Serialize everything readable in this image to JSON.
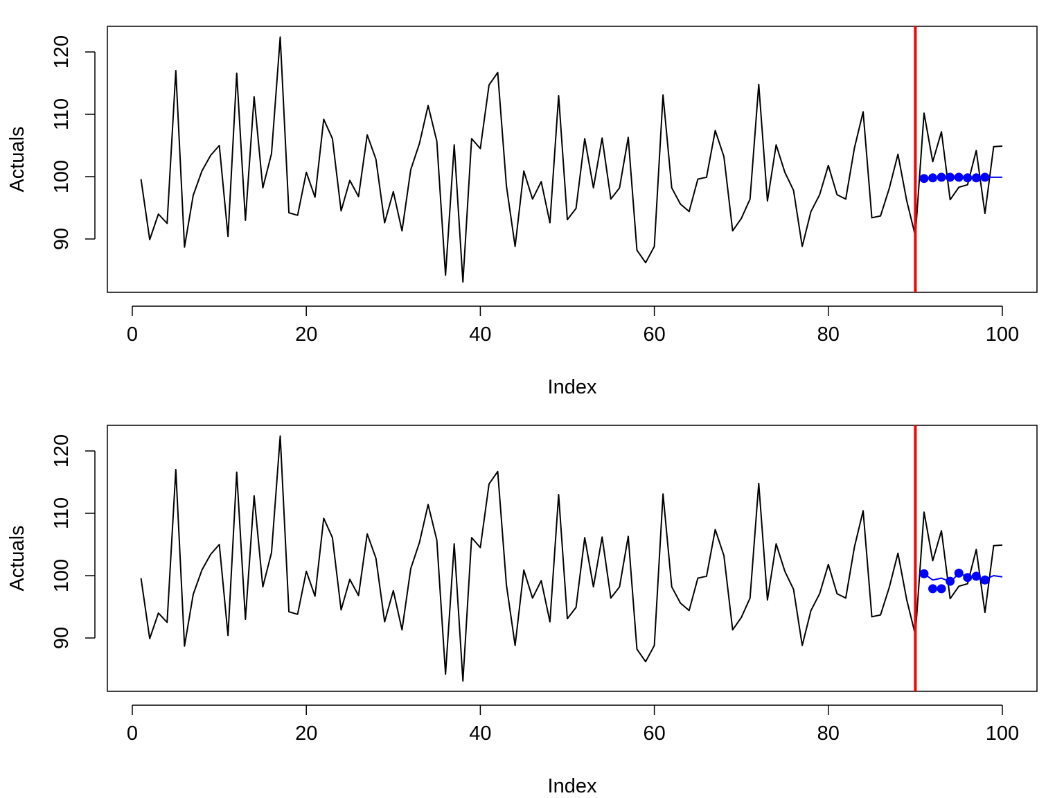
{
  "chart_data": [
    {
      "type": "line",
      "xlabel": "Index",
      "ylabel": "Actuals",
      "xlim": [
        1,
        100
      ],
      "ylim": [
        83,
        122.5
      ],
      "x_ticks": [
        "0",
        "20",
        "40",
        "60",
        "80",
        "100"
      ],
      "y_ticks": [
        "90",
        "100",
        "110",
        "120"
      ],
      "vline_x": 90,
      "vline_color": "#ff0000",
      "actuals": [
        99.6,
        89.9,
        94.0,
        92.5,
        117.0,
        88.7,
        97.0,
        100.9,
        103.4,
        105.0,
        90.4,
        116.6,
        93.0,
        112.8,
        98.2,
        103.7,
        122.4,
        94.2,
        93.8,
        100.7,
        96.7,
        109.2,
        106.1,
        94.5,
        99.4,
        96.8,
        106.7,
        102.8,
        92.6,
        97.6,
        91.3,
        101.1,
        105.3,
        111.4,
        105.7,
        84.2,
        105.1,
        83.1,
        106.1,
        104.5,
        114.7,
        116.7,
        98.5,
        88.8,
        100.9,
        96.4,
        99.2,
        92.6,
        113.0,
        93.1,
        94.9,
        106.1,
        98.2,
        106.2,
        96.4,
        98.2,
        106.3,
        88.2,
        86.2,
        88.8,
        113.1,
        98.2,
        95.6,
        94.4,
        99.6,
        99.9,
        107.4,
        103.2,
        91.3,
        93.3,
        96.4,
        114.8,
        96.1,
        105.1,
        100.7,
        97.8,
        88.8,
        94.4,
        97.1,
        101.8,
        97.1,
        96.4,
        104.6,
        110.4,
        93.4,
        93.7,
        98.1,
        103.6,
        96.2,
        90.5,
        110.2,
        102.4,
        107.2,
        96.3,
        98.3,
        98.7,
        104.2,
        94.1,
        104.8,
        104.9
      ],
      "forecast_x": [
        91,
        92,
        93,
        94,
        95,
        96,
        97,
        98,
        99,
        100
      ],
      "forecast": [
        99.7,
        99.8,
        99.9,
        99.9,
        99.9,
        99.8,
        99.8,
        99.9,
        99.9,
        99.9
      ],
      "holdout_points_x": [
        91,
        92,
        93,
        94,
        95,
        96,
        97,
        98
      ],
      "holdout_points": [
        99.7,
        99.8,
        99.9,
        99.9,
        99.9,
        99.8,
        99.8,
        99.9
      ],
      "series_colors": {
        "actuals": "#000000",
        "forecast": "#0000ff"
      }
    },
    {
      "type": "line",
      "xlabel": "Index",
      "ylabel": "Actuals",
      "xlim": [
        1,
        100
      ],
      "ylim": [
        83,
        122.5
      ],
      "x_ticks": [
        "0",
        "20",
        "40",
        "60",
        "80",
        "100"
      ],
      "y_ticks": [
        "90",
        "100",
        "110",
        "120"
      ],
      "vline_x": 90,
      "vline_color": "#ff0000",
      "actuals": [
        99.6,
        89.9,
        94.0,
        92.5,
        117.0,
        88.7,
        97.0,
        100.9,
        103.4,
        105.0,
        90.4,
        116.6,
        93.0,
        112.8,
        98.2,
        103.7,
        122.4,
        94.2,
        93.8,
        100.7,
        96.7,
        109.2,
        106.1,
        94.5,
        99.4,
        96.8,
        106.7,
        102.8,
        92.6,
        97.6,
        91.3,
        101.1,
        105.3,
        111.4,
        105.7,
        84.2,
        105.1,
        83.1,
        106.1,
        104.5,
        114.7,
        116.7,
        98.5,
        88.8,
        100.9,
        96.4,
        99.2,
        92.6,
        113.0,
        93.1,
        94.9,
        106.1,
        98.2,
        106.2,
        96.4,
        98.2,
        106.3,
        88.2,
        86.2,
        88.8,
        113.1,
        98.2,
        95.6,
        94.4,
        99.6,
        99.9,
        107.4,
        103.2,
        91.3,
        93.3,
        96.4,
        114.8,
        96.1,
        105.1,
        100.7,
        97.8,
        88.8,
        94.4,
        97.1,
        101.8,
        97.1,
        96.4,
        104.6,
        110.4,
        93.4,
        93.7,
        98.1,
        103.6,
        96.2,
        90.5,
        110.2,
        102.4,
        107.2,
        96.3,
        98.3,
        98.7,
        104.2,
        94.1,
        104.8,
        104.9
      ],
      "forecast_x": [
        91,
        92,
        93,
        94,
        95,
        96,
        97,
        98,
        99,
        100
      ],
      "forecast": [
        100.3,
        99.3,
        99.6,
        99.0,
        100.3,
        99.9,
        99.8,
        99.4,
        100.0,
        99.8
      ],
      "holdout_points_x": [
        91,
        92,
        93,
        94,
        95,
        96,
        97,
        98
      ],
      "holdout_points": [
        100.3,
        97.9,
        97.9,
        99.1,
        100.4,
        99.7,
        99.9,
        99.3
      ],
      "series_colors": {
        "actuals": "#000000",
        "forecast": "#0000ff"
      }
    }
  ]
}
